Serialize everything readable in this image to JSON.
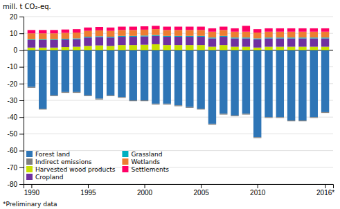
{
  "chart_data": {
    "type": "bar",
    "stacked": true,
    "x": [
      1990,
      1991,
      1992,
      1993,
      1994,
      1995,
      1996,
      1997,
      1998,
      1999,
      2000,
      2001,
      2002,
      2003,
      2004,
      2005,
      2006,
      2007,
      2008,
      2009,
      2010,
      2011,
      2012,
      2013,
      2014,
      2015,
      2016
    ],
    "xlim": [
      1989.3,
      2016.7
    ],
    "xticks": [
      1990,
      1995,
      2000,
      2005,
      2010,
      {
        "value": 2016,
        "label": "2016*"
      }
    ],
    "ylim": [
      -80,
      20
    ],
    "yticks": [
      -80,
      -70,
      -60,
      -50,
      -40,
      -30,
      -20,
      -10,
      0,
      10,
      20
    ],
    "y_label": "mill. t CO₂-eq.",
    "annotations": [
      "*Preliminary data"
    ],
    "grid": true,
    "legend": "lower left",
    "series": [
      {
        "name": "Forest land",
        "color": "#2e75b6",
        "values": [
          -22,
          -35,
          -27,
          -25,
          -25,
          -27,
          -29,
          -27,
          -28,
          -30,
          -30,
          -32,
          -32,
          -33,
          -34,
          -35,
          -44,
          -38,
          -39,
          -38,
          -52,
          -40,
          -40,
          -42,
          -42,
          -40,
          -37
        ]
      },
      {
        "name": "Indirect emissions",
        "color": "#7f7f7f",
        "values": [
          -0.5,
          -0.5,
          -0.5,
          -0.5,
          -0.5,
          -0.5,
          -0.5,
          -0.5,
          -0.5,
          -0.5,
          -0.5,
          -0.5,
          -0.5,
          -0.5,
          -0.5,
          -0.5,
          -0.5,
          -0.5,
          -0.5,
          -0.5,
          -0.5,
          -0.5,
          -0.5,
          -0.5,
          -0.5,
          -0.5,
          -0.5
        ]
      },
      {
        "name": "Harvested wood products",
        "color": "#c9e000",
        "values": [
          1.5,
          1.5,
          1.5,
          1.8,
          2.0,
          2.5,
          2.8,
          2.5,
          3.0,
          3.0,
          3.2,
          3.5,
          3.0,
          3.0,
          3.0,
          3.0,
          2.0,
          3.0,
          2.0,
          2.0,
          1.5,
          2.0,
          2.0,
          2.0,
          2.0,
          2.0,
          2.0
        ]
      },
      {
        "name": "Cropland",
        "color": "#7030a0",
        "values": [
          4.5,
          4.5,
          4.5,
          4.5,
          4.5,
          5.0,
          5.0,
          5.0,
          5.0,
          5.0,
          5.0,
          5.0,
          5.0,
          5.0,
          5.0,
          5.0,
          5.0,
          5.0,
          5.0,
          5.0,
          5.0,
          5.0,
          5.0,
          5.0,
          5.0,
          5.0,
          5.0
        ]
      },
      {
        "name": "Grassland",
        "color": "#00b0c0",
        "values": [
          0.5,
          0.5,
          0.5,
          0.5,
          0.5,
          0.5,
          0.5,
          0.5,
          0.5,
          0.5,
          0.5,
          0.5,
          0.5,
          0.5,
          0.5,
          0.5,
          0.5,
          0.5,
          0.5,
          0.5,
          0.5,
          0.5,
          0.5,
          0.5,
          0.5,
          0.5,
          0.5
        ]
      },
      {
        "name": "Wetlands",
        "color": "#ed7d31",
        "values": [
          3.5,
          3.5,
          3.5,
          3.5,
          3.5,
          3.5,
          3.5,
          3.5,
          3.5,
          3.5,
          3.5,
          3.5,
          3.5,
          3.5,
          3.5,
          3.5,
          3.5,
          3.5,
          3.5,
          3.5,
          3.5,
          3.5,
          3.5,
          3.5,
          3.5,
          3.5,
          3.5
        ]
      },
      {
        "name": "Settlements",
        "color": "#ff0066",
        "values": [
          2.0,
          2.0,
          2.0,
          2.0,
          2.0,
          2.0,
          2.0,
          2.0,
          2.0,
          2.0,
          2.0,
          2.0,
          2.0,
          2.0,
          2.0,
          2.0,
          2.0,
          2.0,
          2.0,
          3.5,
          2.0,
          2.0,
          2.0,
          2.0,
          2.0,
          2.0,
          2.0
        ]
      }
    ]
  }
}
